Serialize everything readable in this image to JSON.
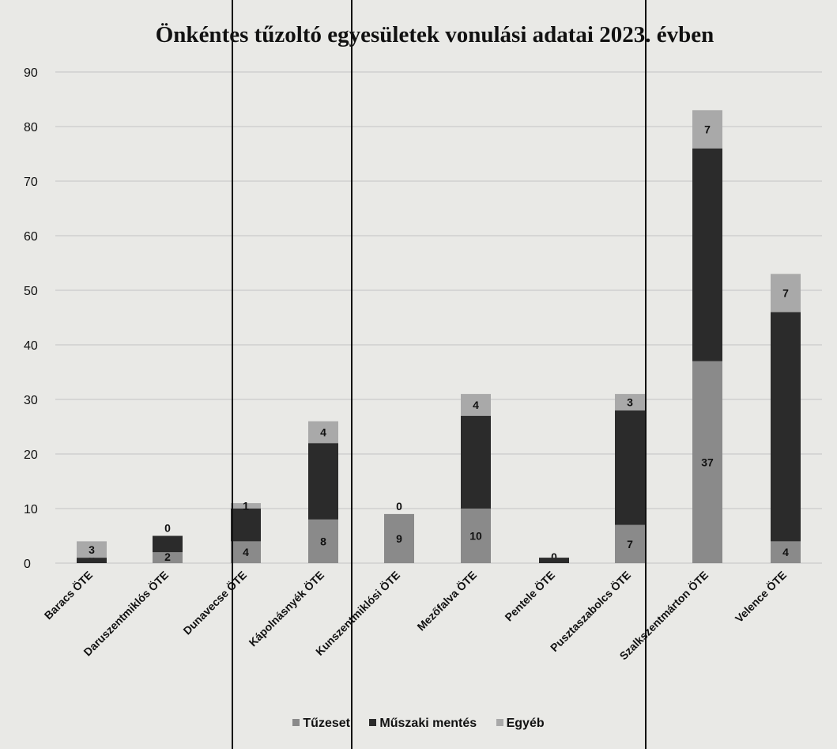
{
  "chart_data": {
    "type": "bar",
    "stacked": true,
    "title": "Önkéntes tűzoltó egyesületek vonulási adatai 2023. évben",
    "xlabel": "",
    "ylabel": "",
    "ylim": [
      0,
      90
    ],
    "yticks": [
      0,
      10,
      20,
      30,
      40,
      50,
      60,
      70,
      80,
      90
    ],
    "grid": true,
    "legend_position": "bottom",
    "categories": [
      "Baracs ÖTE",
      "Daruszentmiklós ÖTE",
      "Dunavecse ÖTE",
      "Kápolnásnyék ÖTE",
      "Kunszentmiklósi ÖTE",
      "Mezőfalva ÖTE",
      "Pentele ÖTE",
      "Pusztaszabolcs ÖTE",
      "Szalkszentmárton ÖTE",
      "Velence ÖTE"
    ],
    "series": [
      {
        "name": "Tűzeset",
        "color": "#8a8a8a",
        "values": [
          0,
          2,
          4,
          8,
          9,
          10,
          0,
          7,
          37,
          4
        ]
      },
      {
        "name": "Műszaki mentés",
        "color": "#2b2b2b",
        "values": [
          1,
          3,
          6,
          14,
          0,
          17,
          1,
          21,
          39,
          42
        ]
      },
      {
        "name": "Egyéb",
        "color": "#a9a9a9",
        "values": [
          3,
          0,
          1,
          4,
          0,
          4,
          0,
          3,
          7,
          7
        ]
      }
    ],
    "data_labels": [
      [
        "0",
        "",
        "3"
      ],
      [
        "2",
        "",
        "0"
      ],
      [
        "4",
        "",
        "1"
      ],
      [
        "8",
        "",
        "4"
      ],
      [
        "9",
        "",
        "0"
      ],
      [
        "10",
        "",
        "4"
      ],
      [
        "0",
        "",
        ""
      ],
      [
        "7",
        "",
        "3"
      ],
      [
        "37",
        "",
        "7"
      ],
      [
        "4",
        "",
        "7"
      ]
    ]
  }
}
